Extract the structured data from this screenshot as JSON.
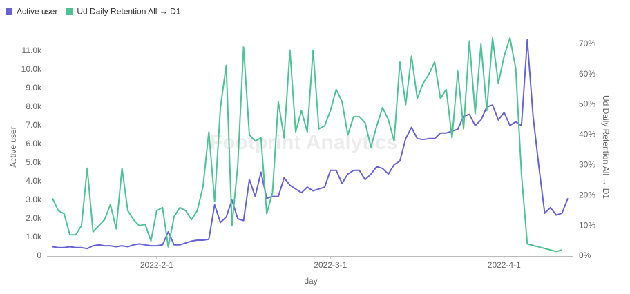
{
  "chart_data": {
    "type": "line",
    "watermark": "Footprint Analytics",
    "x_label": "day",
    "y_label": "Active user",
    "y2_label": "Ud Daily Retention All → D1",
    "categories": [
      null,
      null,
      null,
      null,
      null,
      null,
      null,
      null,
      null,
      null,
      null,
      null,
      null,
      null,
      null,
      null,
      null,
      null,
      "2022-2-1",
      null,
      null,
      null,
      null,
      null,
      null,
      null,
      null,
      null,
      null,
      null,
      null,
      null,
      null,
      null,
      null,
      null,
      null,
      null,
      null,
      null,
      null,
      null,
      null,
      null,
      null,
      null,
      null,
      null,
      "2022-3-1",
      null,
      null,
      null,
      null,
      null,
      null,
      null,
      null,
      null,
      null,
      null,
      null,
      null,
      null,
      null,
      null,
      null,
      null,
      null,
      null,
      null,
      null,
      null,
      null,
      null,
      null,
      null,
      null,
      null,
      "2022-4-1",
      null,
      null,
      null,
      null,
      null,
      null,
      null,
      null,
      null,
      null,
      null
    ],
    "series": [
      {
        "name": "Active user",
        "color": "#6761d8",
        "axis": "y",
        "values": [
          500,
          450,
          450,
          500,
          450,
          450,
          400,
          550,
          600,
          550,
          550,
          500,
          550,
          500,
          600,
          650,
          600,
          550,
          550,
          600,
          1300,
          600,
          600,
          700,
          800,
          850,
          850,
          900,
          2750,
          1800,
          2100,
          3000,
          2000,
          1900,
          4100,
          3200,
          4500,
          3100,
          3200,
          3200,
          4200,
          3800,
          3600,
          3400,
          3700,
          3500,
          3600,
          3700,
          4600,
          4600,
          3900,
          4400,
          4600,
          4600,
          4100,
          4400,
          4800,
          4700,
          4400,
          4900,
          5100,
          6300,
          6900,
          6300,
          6250,
          6300,
          6300,
          6600,
          6600,
          6700,
          6800,
          7500,
          7600,
          7000,
          7300,
          8000,
          8100,
          7300,
          7700,
          7000,
          7200,
          7000,
          11600,
          7500,
          4800,
          2300,
          2600,
          2200,
          2300,
          3100
        ]
      },
      {
        "name": "Ud Daily Retention All → D1",
        "color": "#4cc295",
        "axis": "y2",
        "values": [
          19,
          15,
          14,
          7,
          7,
          10,
          29,
          8,
          10,
          12,
          17,
          9,
          29,
          15,
          12,
          10,
          10.5,
          5,
          15,
          16,
          3,
          13,
          16,
          15,
          12,
          15,
          23,
          41,
          18,
          49,
          63,
          10,
          30,
          69,
          40,
          38,
          39,
          14,
          21,
          51,
          39,
          68,
          41,
          48,
          41,
          68,
          42,
          43,
          48,
          55,
          51,
          40,
          46,
          46,
          44,
          36,
          43,
          49,
          45,
          38,
          64,
          50,
          66,
          52,
          57,
          60,
          64,
          52,
          55,
          39,
          61,
          42,
          71,
          47,
          70,
          48,
          72,
          57,
          66,
          72,
          62,
          27,
          4,
          3.5,
          3,
          2.5,
          2,
          1.5,
          2,
          null
        ]
      }
    ],
    "ylim": [
      0,
      11700
    ],
    "yticks": [
      0,
      {
        "value": 1000,
        "label": "1.0k"
      },
      {
        "value": 2000,
        "label": "2.0k"
      },
      {
        "value": 3000,
        "label": "3.0k"
      },
      {
        "value": 4000,
        "label": "4.0k"
      },
      {
        "value": 5000,
        "label": "5.0k"
      },
      {
        "value": 6000,
        "label": "6.0k"
      },
      {
        "value": 7000,
        "label": "7.0k"
      },
      {
        "value": 8000,
        "label": "8.0k"
      },
      {
        "value": 9000,
        "label": "9.0k"
      },
      {
        "value": 10000,
        "label": "10.0k"
      },
      {
        "value": 11000,
        "label": "11.0k"
      }
    ],
    "y2lim": [
      0,
      72
    ],
    "y2ticks": [
      {
        "value": 0,
        "label": "0%"
      },
      {
        "value": 10,
        "label": "10%"
      },
      {
        "value": 20,
        "label": "20%"
      },
      {
        "value": 30,
        "label": "30%"
      },
      {
        "value": 40,
        "label": "40%"
      },
      {
        "value": 50,
        "label": "50%"
      },
      {
        "value": 60,
        "label": "60%"
      },
      {
        "value": 70,
        "label": "70%"
      }
    ],
    "legend": "top-left"
  }
}
